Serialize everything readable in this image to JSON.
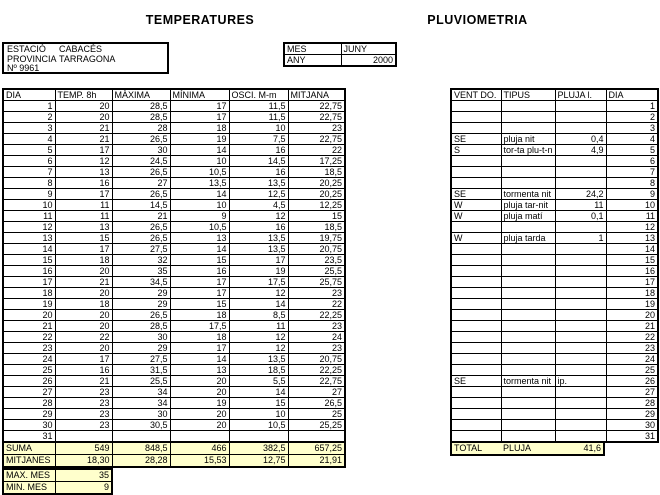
{
  "titles": {
    "temperatures": "TEMPERATURES",
    "pluviometria": "PLUVIOMETRIA"
  },
  "station": {
    "estacio_label": "ESTACIÓ",
    "estacio_value": "CABACÉS",
    "provincia_label": "PROVINCIA",
    "provincia_value": "TARRAGONA",
    "number": "Nº 9961"
  },
  "period": {
    "mes_label": "MES",
    "mes_value": "JUNY",
    "any_label": "ANY",
    "any_value": "2000"
  },
  "temps_table": {
    "headers": [
      "DIA",
      "TEMP. 8h",
      "MÀXIMA",
      "MÍNIMA",
      "OSCI. M-m",
      "MITJANA"
    ],
    "rows": [
      [
        "1",
        "20",
        "28,5",
        "17",
        "11,5",
        "22,75"
      ],
      [
        "2",
        "20",
        "28,5",
        "17",
        "11,5",
        "22,75"
      ],
      [
        "3",
        "21",
        "28",
        "18",
        "10",
        "23"
      ],
      [
        "4",
        "21",
        "26,5",
        "19",
        "7,5",
        "22,75"
      ],
      [
        "5",
        "17",
        "30",
        "14",
        "16",
        "22"
      ],
      [
        "6",
        "12",
        "24,5",
        "10",
        "14,5",
        "17,25"
      ],
      [
        "7",
        "13",
        "26,5",
        "10,5",
        "16",
        "18,5"
      ],
      [
        "8",
        "16",
        "27",
        "13,5",
        "13,5",
        "20,25"
      ],
      [
        "9",
        "17",
        "26,5",
        "14",
        "12,5",
        "20,25"
      ],
      [
        "10",
        "11",
        "14,5",
        "10",
        "4,5",
        "12,25"
      ],
      [
        "11",
        "11",
        "21",
        "9",
        "12",
        "15"
      ],
      [
        "12",
        "13",
        "26,5",
        "10,5",
        "16",
        "18,5"
      ],
      [
        "13",
        "15",
        "26,5",
        "13",
        "13,5",
        "19,75"
      ],
      [
        "14",
        "17",
        "27,5",
        "14",
        "13,5",
        "20,75"
      ],
      [
        "15",
        "18",
        "32",
        "15",
        "17",
        "23,5"
      ],
      [
        "16",
        "20",
        "35",
        "16",
        "19",
        "25,5"
      ],
      [
        "17",
        "21",
        "34,5",
        "17",
        "17,5",
        "25,75"
      ],
      [
        "18",
        "20",
        "29",
        "17",
        "12",
        "23"
      ],
      [
        "19",
        "18",
        "29",
        "15",
        "14",
        "22"
      ],
      [
        "20",
        "20",
        "26,5",
        "18",
        "8,5",
        "22,25"
      ],
      [
        "21",
        "20",
        "28,5",
        "17,5",
        "11",
        "23"
      ],
      [
        "22",
        "22",
        "30",
        "18",
        "12",
        "24"
      ],
      [
        "23",
        "20",
        "29",
        "17",
        "12",
        "23"
      ],
      [
        "24",
        "17",
        "27,5",
        "14",
        "13,5",
        "20,75"
      ],
      [
        "25",
        "16",
        "31,5",
        "13",
        "18,5",
        "22,25"
      ],
      [
        "26",
        "21",
        "25,5",
        "20",
        "5,5",
        "22,75"
      ],
      [
        "27",
        "23",
        "34",
        "20",
        "14",
        "27"
      ],
      [
        "28",
        "23",
        "34",
        "19",
        "15",
        "26,5"
      ],
      [
        "29",
        "23",
        "30",
        "20",
        "10",
        "25"
      ],
      [
        "30",
        "23",
        "30,5",
        "20",
        "10,5",
        "25,25"
      ],
      [
        "31",
        "",
        "",
        "",
        "",
        ""
      ]
    ],
    "suma": {
      "label": "SUMA",
      "values": [
        "549",
        "848,5",
        "466",
        "382,5",
        "657,25"
      ]
    },
    "mitjanes": {
      "label": "MITJANES",
      "values": [
        "18,30",
        "28,28",
        "15,53",
        "12,75",
        "21,91"
      ]
    },
    "max_mes": {
      "label": "MAX. MES",
      "value": "35"
    },
    "min_mes": {
      "label": "MIN. MES",
      "value": "9"
    }
  },
  "rain_table": {
    "headers": [
      "VENT DO.",
      "TIPUS",
      "PLUJA l.",
      "DIA"
    ],
    "rows": [
      [
        "",
        "",
        "",
        "1"
      ],
      [
        "",
        "",
        "",
        "2"
      ],
      [
        "",
        "",
        "",
        "3"
      ],
      [
        "SE",
        "pluja nit",
        "0,4",
        "4"
      ],
      [
        "S",
        "tor-ta plu-t-n",
        "4,9",
        "5"
      ],
      [
        "",
        "",
        "",
        "6"
      ],
      [
        "",
        "",
        "",
        "7"
      ],
      [
        "",
        "",
        "",
        "8"
      ],
      [
        "SE",
        "tormenta nit",
        "24,2",
        "9"
      ],
      [
        "W",
        "pluja tar-nit",
        "11",
        "10"
      ],
      [
        "W",
        "pluja matí",
        "0,1",
        "11"
      ],
      [
        "",
        "",
        "",
        "12"
      ],
      [
        "W",
        "pluja tarda",
        "1",
        "13"
      ],
      [
        "",
        "",
        "",
        "14"
      ],
      [
        "",
        "",
        "",
        "15"
      ],
      [
        "",
        "",
        "",
        "16"
      ],
      [
        "",
        "",
        "",
        "17"
      ],
      [
        "",
        "",
        "",
        "18"
      ],
      [
        "",
        "",
        "",
        "19"
      ],
      [
        "",
        "",
        "",
        "20"
      ],
      [
        "",
        "",
        "",
        "21"
      ],
      [
        "",
        "",
        "",
        "22"
      ],
      [
        "",
        "",
        "",
        "23"
      ],
      [
        "",
        "",
        "",
        "24"
      ],
      [
        "",
        "",
        "",
        "25"
      ],
      [
        "SE",
        "tormenta nit",
        "ip.",
        "26"
      ],
      [
        "",
        "",
        "",
        "27"
      ],
      [
        "",
        "",
        "",
        "28"
      ],
      [
        "",
        "",
        "",
        "29"
      ],
      [
        "",
        "",
        "",
        "30"
      ],
      [
        "",
        "",
        "",
        "31"
      ]
    ],
    "total": {
      "label": "TOTAL",
      "pluja_label": "PLUJA",
      "value": "41,6"
    }
  },
  "colors": {
    "highlight": "#FFFFCC",
    "border": "#000000",
    "background": "#FFFFFF"
  }
}
